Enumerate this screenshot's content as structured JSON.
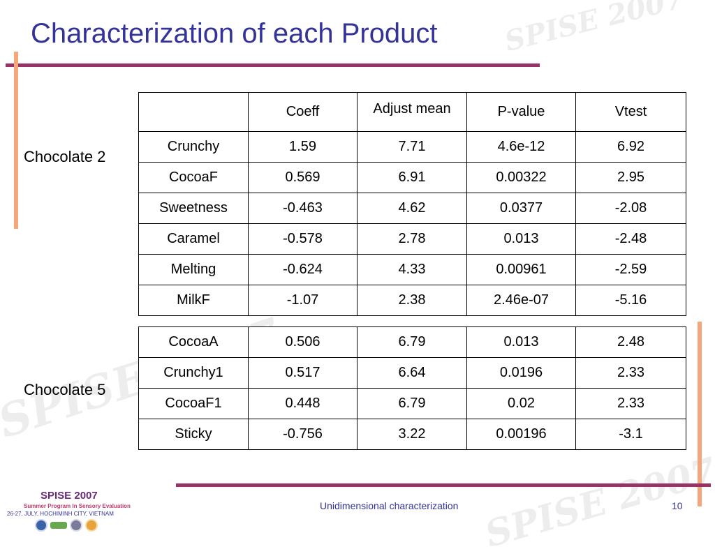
{
  "slide": {
    "title": "Characterization of each Product",
    "footer_center": "Unidimensional characterization",
    "page_number": "10"
  },
  "watermark": {
    "text": "SPISE 2007"
  },
  "logo": {
    "title": "SPISE 2007",
    "subtitle": "Summer Program In Sensory Evaluation",
    "dates": "26-27, JULY, HOCHIMINH CITY, VIETNAM"
  },
  "table": {
    "headers": [
      "",
      "Coeff",
      "Adjust mean",
      "P-value",
      "Vtest"
    ],
    "groups": [
      {
        "label": "Chocolate 2",
        "rows": [
          [
            "Crunchy",
            "1.59",
            "7.71",
            "4.6e-12",
            "6.92"
          ],
          [
            "CocoaF",
            "0.569",
            "6.91",
            "0.00322",
            "2.95"
          ],
          [
            "Sweetness",
            "-0.463",
            "4.62",
            "0.0377",
            "-2.08"
          ],
          [
            "Caramel",
            "-0.578",
            "2.78",
            "0.013",
            "-2.48"
          ],
          [
            "Melting",
            "-0.624",
            "4.33",
            "0.00961",
            "-2.59"
          ],
          [
            "MilkF",
            "-1.07",
            "2.38",
            "2.46e-07",
            "-5.16"
          ]
        ]
      },
      {
        "label": "Chocolate 5",
        "rows": [
          [
            "CocoaA",
            "0.506",
            "6.79",
            "0.013",
            "2.48"
          ],
          [
            "Crunchy1",
            "0.517",
            "6.64",
            "0.0196",
            "2.33"
          ],
          [
            "CocoaF1",
            "0.448",
            "6.79",
            "0.02",
            "2.33"
          ],
          [
            "Sticky",
            "-0.756",
            "3.22",
            "0.00196",
            "-3.1"
          ]
        ]
      }
    ]
  },
  "colors": {
    "title": "#333399",
    "rule": "#993366",
    "accent_bar": "#f4a77a"
  }
}
